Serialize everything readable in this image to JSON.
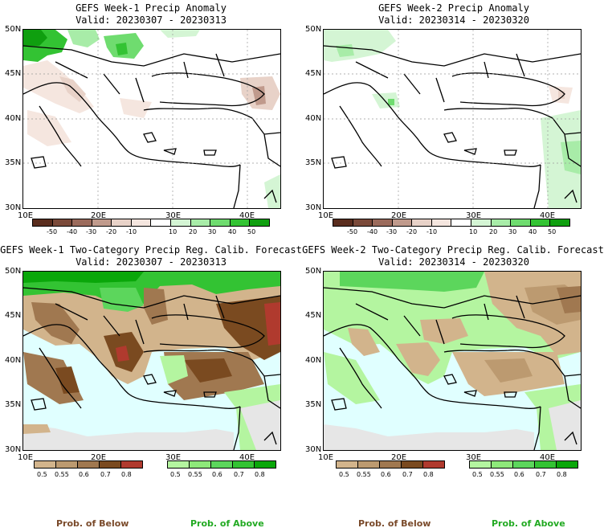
{
  "panels": [
    {
      "title": "GEFS Week-1 Precip Anomaly",
      "valid": "Valid: 20230307 - 20230313"
    },
    {
      "title": "GEFS Week-2 Precip Anomaly",
      "valid": "Valid: 20230314 - 20230320"
    },
    {
      "title": "GEFS Week-1 Two-Category Precip Reg. Calib. Forecast",
      "valid": "Valid: 20230307 - 20230313"
    },
    {
      "title": "GEFS Week-2 Two-Category Precip Reg. Calib. Forecast",
      "valid": "Valid: 20230314 - 20230320"
    }
  ],
  "axes": {
    "lat_labels": [
      "50N",
      "45N",
      "40N",
      "35N",
      "30N"
    ],
    "lon_labels": [
      "10E",
      "20E",
      "30E",
      "40E"
    ]
  },
  "anomaly_colorbar": {
    "labels": [
      "-50",
      "-40",
      "-30",
      "-20",
      "-10",
      "10",
      "20",
      "30",
      "40",
      "50"
    ],
    "colors": [
      "#5a2d1e",
      "#7b4a3a",
      "#9b6b5c",
      "#c09a8c",
      "#e8d2c8",
      "#f5e6df",
      "#ffffff",
      "#d4f5d4",
      "#a8eca8",
      "#6fdc6f",
      "#33c333",
      "#0f9f0f"
    ]
  },
  "below_colorbar": {
    "labels": [
      "0.5",
      "0.55",
      "0.6",
      "0.7",
      "0.8"
    ],
    "colors": [
      "#d2b48c",
      "#bc9a70",
      "#a07850",
      "#7a4a20",
      "#b03a2e"
    ]
  },
  "above_colorbar": {
    "labels": [
      "0.5",
      "0.55",
      "0.6",
      "0.7",
      "0.8"
    ],
    "colors": [
      "#b4f5a0",
      "#8ee87a",
      "#5cd65c",
      "#33c333",
      "#0aa70a"
    ]
  },
  "prob_labels": {
    "below": "Prob. of Below",
    "above": "Prob. of Above"
  },
  "colors": {
    "below_text": "#7a4a2a",
    "above_text": "#22aa22",
    "sea": "#e0ffff",
    "nodata": "#e6e6e6"
  }
}
